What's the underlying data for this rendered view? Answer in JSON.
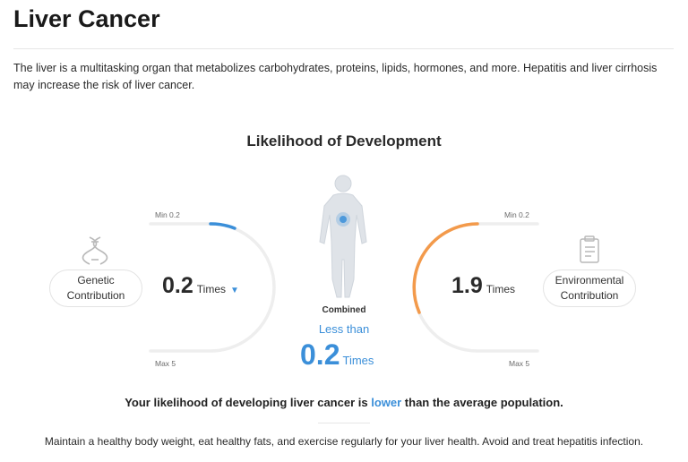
{
  "page": {
    "title": "Liver Cancer",
    "description": "The liver is a multitasking organ that metabolizes carbohydrates, proteins, lipids, hormones, and more. Hepatitis and liver cirrhosis may increase the risk of liver cancer."
  },
  "likelihood": {
    "section_title": "Likelihood of Development",
    "genetic": {
      "label_line1": "Genetic",
      "label_line2": "Contribution",
      "min_label": "Min 0.2",
      "max_label": "Max 5",
      "value": "0.2",
      "unit": "Times",
      "trend_icon": "triangle-down-icon",
      "fill_fraction": 0.12,
      "color": "#3b8fd9"
    },
    "environmental": {
      "label_line1": "Environmental",
      "label_line2": "Contribution",
      "min_label": "Min 0.2",
      "max_label": "Max 5",
      "value": "1.9",
      "unit": "Times",
      "fill_fraction": 0.55,
      "color": "#f39a4b"
    },
    "combined": {
      "label": "Combined",
      "qualifier": "Less than",
      "value": "0.2",
      "unit": "Times",
      "color": "#3b8fd9"
    }
  },
  "summary": {
    "prefix": "Your likelihood of developing liver cancer is ",
    "highlight": "lower",
    "suffix": " than the average population."
  },
  "advice": "Maintain a healthy body weight, eat healthy fats, and exercise regularly for your liver health. Avoid and treat hepatitis infection.",
  "colors": {
    "track": "#eeeeee",
    "accent_blue": "#3b8fd9",
    "accent_orange": "#f39a4b",
    "body_figure": "#dfe3e8"
  }
}
